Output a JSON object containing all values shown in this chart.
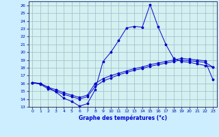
{
  "xlabel": "Graphe des températures (°c)",
  "background_color": "#cceeff",
  "plot_bg_color": "#d4f0f0",
  "line_color": "#0000cc",
  "grid_color": "#99bbcc",
  "xlim": [
    -0.5,
    23.5
  ],
  "ylim": [
    13,
    26.5
  ],
  "xticks": [
    0,
    1,
    2,
    3,
    4,
    5,
    6,
    7,
    8,
    9,
    10,
    11,
    12,
    13,
    14,
    15,
    16,
    17,
    18,
    19,
    20,
    21,
    22,
    23
  ],
  "yticks": [
    13,
    14,
    15,
    16,
    17,
    18,
    19,
    20,
    21,
    22,
    23,
    24,
    25,
    26
  ],
  "curve1_x": [
    0,
    1,
    2,
    3,
    4,
    5,
    6,
    7,
    8,
    9,
    10,
    11,
    12,
    13,
    14,
    15,
    16,
    17,
    18,
    19,
    20,
    21,
    22,
    23
  ],
  "curve1_y": [
    16.1,
    16.0,
    15.5,
    14.9,
    14.1,
    13.7,
    13.1,
    13.4,
    15.2,
    18.8,
    20.0,
    21.5,
    23.1,
    23.3,
    23.2,
    26.1,
    23.3,
    21.0,
    19.2,
    18.8,
    18.7,
    18.5,
    18.3,
    18.1
  ],
  "curve2_x": [
    0,
    1,
    2,
    3,
    4,
    5,
    6,
    7,
    8,
    9,
    10,
    11,
    12,
    13,
    14,
    15,
    16,
    17,
    18,
    19,
    20,
    21,
    22,
    23
  ],
  "curve2_y": [
    16.1,
    15.9,
    15.3,
    15.0,
    14.6,
    14.3,
    14.0,
    14.3,
    15.6,
    16.3,
    16.7,
    17.1,
    17.4,
    17.7,
    17.9,
    18.2,
    18.4,
    18.6,
    18.8,
    19.0,
    18.9,
    18.8,
    18.7,
    18.1
  ],
  "curve3_x": [
    0,
    1,
    2,
    3,
    4,
    5,
    6,
    7,
    8,
    9,
    10,
    11,
    12,
    13,
    14,
    15,
    16,
    17,
    18,
    19,
    20,
    21,
    22,
    23
  ],
  "curve3_y": [
    16.1,
    16.0,
    15.5,
    15.2,
    14.8,
    14.5,
    14.2,
    14.5,
    16.0,
    16.6,
    17.0,
    17.3,
    17.6,
    17.9,
    18.1,
    18.4,
    18.6,
    18.8,
    19.0,
    19.2,
    19.1,
    19.0,
    18.9,
    16.5
  ]
}
